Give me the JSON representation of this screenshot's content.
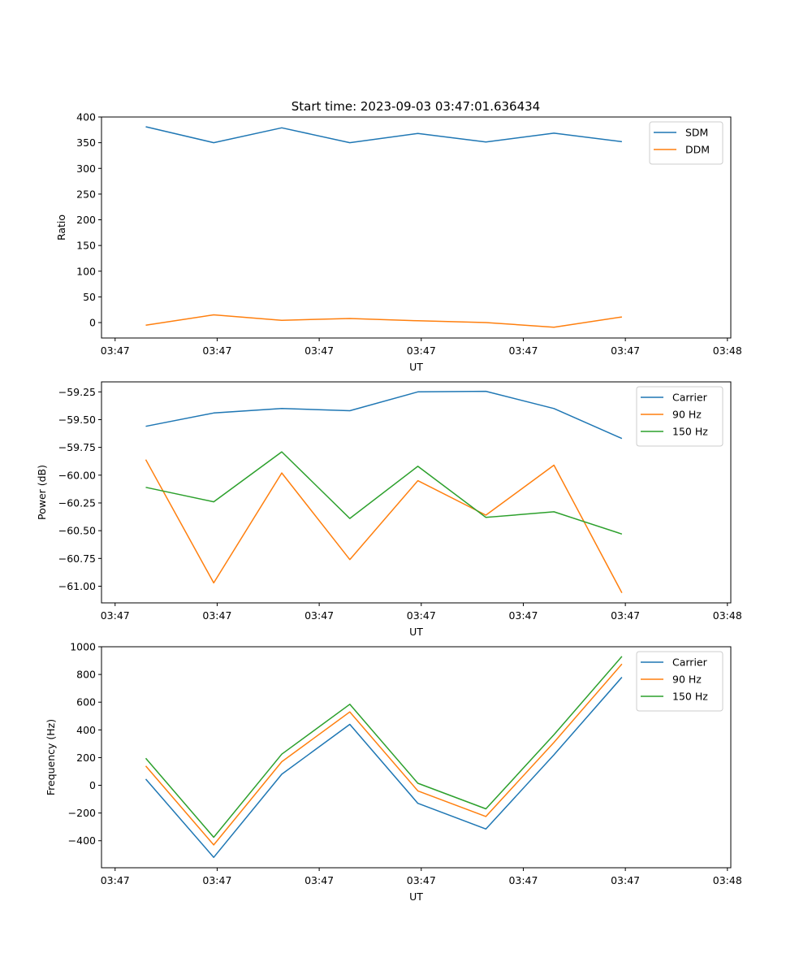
{
  "figure": {
    "title": "Start time: 2023-09-03 03:47:01.636434"
  },
  "x_tick_labels": [
    "03:47",
    "03:47",
    "03:47",
    "03:47",
    "03:47",
    "03:47",
    "03:48"
  ],
  "chart_data": [
    {
      "type": "line",
      "title": "Start time: 2023-09-03 03:47:01.636434",
      "xlabel": "UT",
      "ylabel": "Ratio",
      "x": [
        1,
        2,
        3,
        4,
        5,
        6,
        7,
        8
      ],
      "xlim": [
        0.35,
        9.6
      ],
      "ylim": [
        -30,
        400
      ],
      "yticks": [
        0,
        50,
        100,
        150,
        200,
        250,
        300,
        350,
        400
      ],
      "ytick_labels": [
        "0",
        "50",
        "100",
        "150",
        "200",
        "250",
        "300",
        "350",
        "400"
      ],
      "legend": "top-right",
      "series": [
        {
          "name": "SDM",
          "color": "#1f77b4",
          "values": [
            381,
            350,
            379,
            350,
            368,
            351.5,
            368.5,
            352
          ]
        },
        {
          "name": "DDM",
          "color": "#ff7f0e",
          "values": [
            -5,
            15,
            4.5,
            8,
            3.5,
            0,
            -9,
            11
          ]
        }
      ]
    },
    {
      "type": "line",
      "title": "",
      "xlabel": "UT",
      "ylabel": "Power (dB)",
      "x": [
        1,
        2,
        3,
        4,
        5,
        6,
        7,
        8
      ],
      "xlim": [
        0.35,
        9.6
      ],
      "ylim": [
        -61.15,
        -59.16
      ],
      "yticks": [
        -61.0,
        -60.75,
        -60.5,
        -60.25,
        -60.0,
        -59.75,
        -59.5,
        -59.25
      ],
      "ytick_labels": [
        "−61.00",
        "−60.75",
        "−60.50",
        "−60.25",
        "−60.00",
        "−59.75",
        "−59.50",
        "−59.25"
      ],
      "legend": "top-right",
      "series": [
        {
          "name": "Carrier",
          "color": "#1f77b4",
          "values": [
            -59.56,
            -59.44,
            -59.4,
            -59.42,
            -59.25,
            -59.245,
            -59.4,
            -59.67
          ]
        },
        {
          "name": "90 Hz",
          "color": "#ff7f0e",
          "values": [
            -59.86,
            -60.97,
            -59.98,
            -60.76,
            -60.05,
            -60.36,
            -59.91,
            -61.06
          ]
        },
        {
          "name": "150 Hz",
          "color": "#2ca02c",
          "values": [
            -60.11,
            -60.24,
            -59.79,
            -60.39,
            -59.92,
            -60.38,
            -60.33,
            -60.53
          ]
        }
      ]
    },
    {
      "type": "line",
      "title": "",
      "xlabel": "UT",
      "ylabel": "Frequency (Hz)",
      "x": [
        1,
        2,
        3,
        4,
        5,
        6,
        7,
        8
      ],
      "xlim": [
        0.35,
        9.6
      ],
      "ylim": [
        -595,
        1000
      ],
      "yticks": [
        -400,
        -200,
        0,
        200,
        400,
        600,
        800,
        1000
      ],
      "ytick_labels": [
        "−400",
        "−200",
        "0",
        "200",
        "400",
        "600",
        "800",
        "1000"
      ],
      "legend": "top-right",
      "series": [
        {
          "name": "Carrier",
          "color": "#1f77b4",
          "values": [
            45,
            -520,
            80,
            440,
            -130,
            -315,
            220,
            780
          ]
        },
        {
          "name": "90 Hz",
          "color": "#ff7f0e",
          "values": [
            140,
            -430,
            170,
            530,
            -40,
            -225,
            310,
            875
          ]
        },
        {
          "name": "150 Hz",
          "color": "#2ca02c",
          "values": [
            195,
            -375,
            225,
            585,
            15,
            -170,
            365,
            930
          ]
        }
      ]
    }
  ],
  "x_tick_positions": [
    0.55,
    2.05,
    3.55,
    5.05,
    6.55,
    8.05,
    9.55
  ]
}
